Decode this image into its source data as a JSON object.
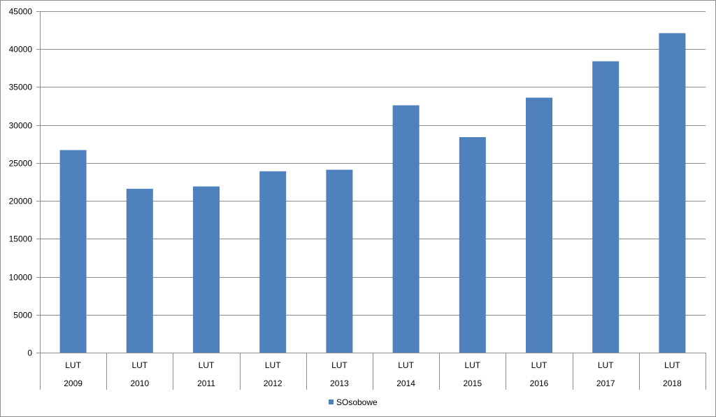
{
  "chart_data": {
    "type": "bar",
    "categories": [
      [
        "LUT",
        "2009"
      ],
      [
        "LUT",
        "2010"
      ],
      [
        "LUT",
        "2011"
      ],
      [
        "LUT",
        "2012"
      ],
      [
        "LUT",
        "2013"
      ],
      [
        "LUT",
        "2014"
      ],
      [
        "LUT",
        "2015"
      ],
      [
        "LUT",
        "2016"
      ],
      [
        "LUT",
        "2017"
      ],
      [
        "LUT",
        "2018"
      ]
    ],
    "series": [
      {
        "name": "SOsobowe",
        "color": "#4F81BD",
        "values": [
          26700,
          21600,
          21900,
          23900,
          24100,
          32600,
          28400,
          33600,
          38400,
          42100
        ]
      }
    ],
    "ylim": [
      0,
      45000
    ],
    "yticks": [
      0,
      5000,
      10000,
      15000,
      20000,
      25000,
      30000,
      35000,
      40000,
      45000
    ],
    "grid": true,
    "legend": "bottom",
    "colors": {
      "gridline": "#8c8c8c",
      "axis": "#8c8c8c"
    }
  }
}
